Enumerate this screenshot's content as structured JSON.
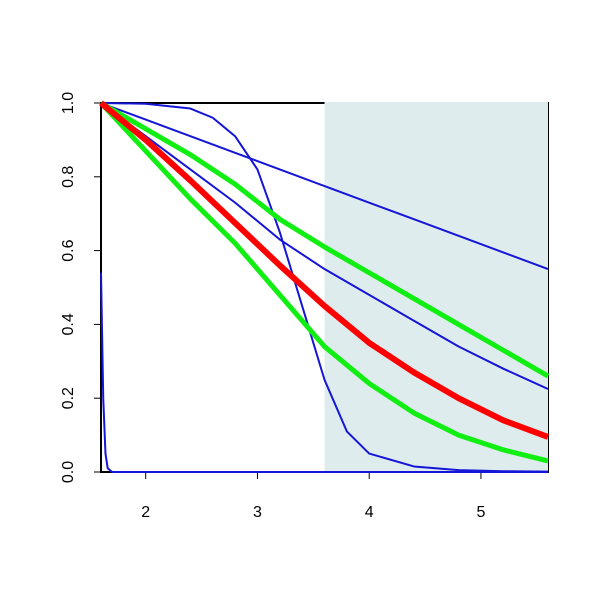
{
  "chart_data": {
    "type": "line",
    "x": [
      1.6,
      2.0,
      2.4,
      2.8,
      3.2,
      3.6,
      4.0,
      4.4,
      4.8,
      5.2,
      5.6
    ],
    "xlim": [
      1.6,
      5.6
    ],
    "xticks": [
      2,
      3,
      4,
      5
    ],
    "ylim": [
      0,
      1
    ],
    "yticks": [
      {
        "value": 0,
        "label": "0.0"
      },
      {
        "value": 0.2,
        "label": "0.2"
      },
      {
        "value": 0.4,
        "label": "0.4"
      },
      {
        "value": 0.6,
        "label": "0.6"
      },
      {
        "value": 0.8,
        "label": "0.8"
      },
      {
        "value": 1,
        "label": "1.0"
      }
    ],
    "shaded_xrange": [
      3.6,
      5.6
    ],
    "shade_color": "#deeced",
    "series": [
      {
        "color": "#1515d8",
        "width": 2,
        "values": [
          1,
          0.955,
          0.91,
          0.865,
          0.82,
          0.775,
          0.73,
          0.685,
          0.64,
          0.595,
          0.55
        ]
      },
      {
        "color": "#1515d8",
        "width": 2,
        "values": [
          1,
          0.91,
          0.82,
          0.73,
          0.63,
          0.55,
          0.48,
          0.41,
          0.34,
          0.28,
          0.225
        ]
      },
      {
        "color": "#1515d8",
        "width": 2,
        "x": [
          1.6,
          2.0,
          2.4,
          2.6,
          2.8,
          3.0,
          3.2,
          3.4,
          3.6,
          3.8,
          4.0,
          4.4,
          4.8,
          5.2,
          5.6
        ],
        "values": [
          1,
          0.998,
          0.985,
          0.96,
          0.91,
          0.82,
          0.65,
          0.45,
          0.25,
          0.11,
          0.05,
          0.015,
          0.005,
          0.002,
          0.001
        ]
      },
      {
        "color": "#1515d8",
        "width": 2,
        "x": [
          1.6,
          1.62,
          1.64,
          1.66,
          1.7,
          5.6
        ],
        "values": [
          0.54,
          0.2,
          0.05,
          0.01,
          0,
          0
        ]
      },
      {
        "color": "#11ee11",
        "width": 5,
        "values": [
          1,
          0.93,
          0.86,
          0.78,
          0.685,
          0.61,
          0.54,
          0.47,
          0.4,
          0.33,
          0.26
        ]
      },
      {
        "color": "#11ee11",
        "width": 5,
        "values": [
          1,
          0.87,
          0.74,
          0.62,
          0.48,
          0.34,
          0.24,
          0.16,
          0.1,
          0.06,
          0.03
        ]
      },
      {
        "color": "#ff0000",
        "width": 6,
        "values": [
          1,
          0.9,
          0.79,
          0.675,
          0.56,
          0.45,
          0.35,
          0.27,
          0.2,
          0.14,
          0.095
        ]
      }
    ]
  }
}
